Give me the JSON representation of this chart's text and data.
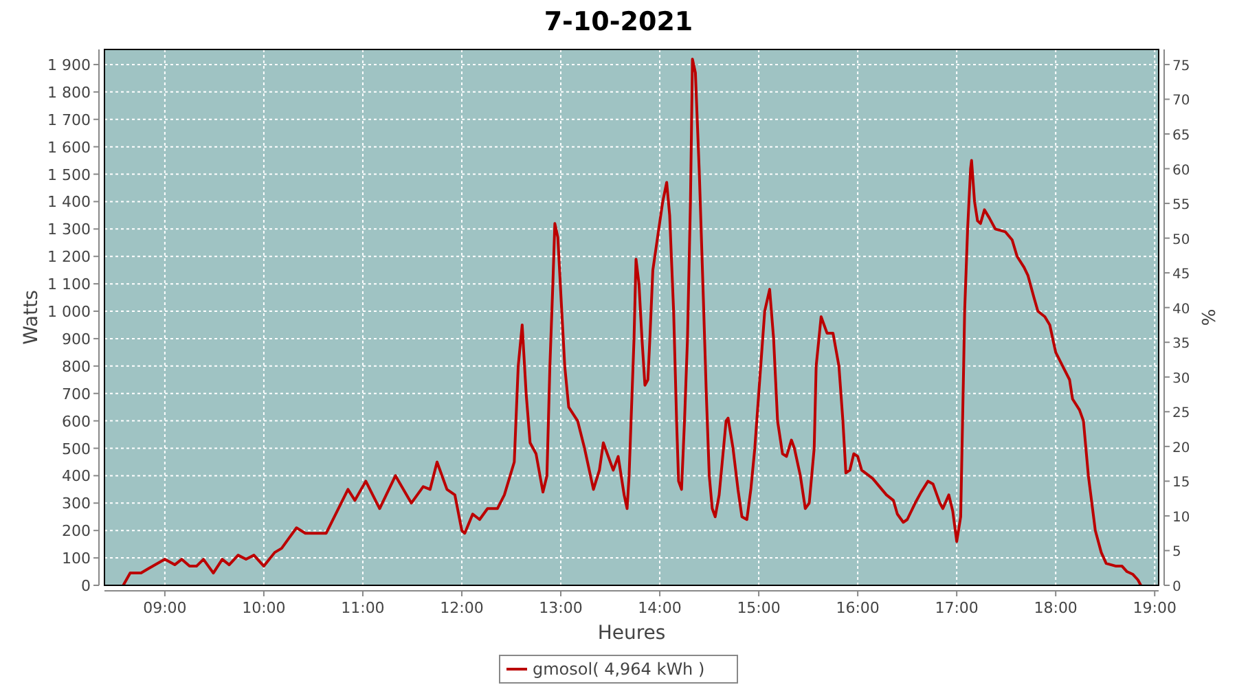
{
  "chart_data": {
    "type": "line",
    "title": "7-10-2021",
    "xlabel": "Heures",
    "ylabel": "Watts",
    "y2label": "%",
    "xlim": [
      8.39,
      19.04
    ],
    "xticks": [
      {
        "value": 9,
        "label": "09:00"
      },
      {
        "value": 10,
        "label": "10:00"
      },
      {
        "value": 11,
        "label": "11:00"
      },
      {
        "value": 12,
        "label": "12:00"
      },
      {
        "value": 13,
        "label": "13:00"
      },
      {
        "value": 14,
        "label": "14:00"
      },
      {
        "value": 15,
        "label": "15:00"
      },
      {
        "value": 16,
        "label": "16:00"
      },
      {
        "value": 17,
        "label": "17:00"
      },
      {
        "value": 18,
        "label": "18:00"
      },
      {
        "value": 19,
        "label": "19:00"
      }
    ],
    "ylim": [
      0,
      1955
    ],
    "yticks": [
      0,
      100,
      200,
      300,
      400,
      500,
      600,
      700,
      800,
      900,
      {
        "value": 1000,
        "label": "1 000"
      },
      {
        "value": 1100,
        "label": "1 100"
      },
      {
        "value": 1200,
        "label": "1 200"
      },
      {
        "value": 1300,
        "label": "1 300"
      },
      {
        "value": 1400,
        "label": "1 400"
      },
      {
        "value": 1500,
        "label": "1 500"
      },
      {
        "value": 1600,
        "label": "1 600"
      },
      {
        "value": 1700,
        "label": "1 700"
      },
      {
        "value": 1800,
        "label": "1 800"
      },
      {
        "value": 1900,
        "label": "1 900"
      }
    ],
    "y2lim": [
      0,
      77.17
    ],
    "y2ticks": [
      0,
      5,
      10,
      15,
      20,
      25,
      30,
      35,
      40,
      45,
      50,
      55,
      60,
      65,
      70,
      75
    ],
    "grid": true,
    "legend": "bottom",
    "marker": "none",
    "line_style": "solid",
    "series": [
      {
        "name": "gmosol( 4,964 kWh )",
        "color": "#bb0000",
        "x": [
          8.58,
          8.65,
          8.76,
          8.83,
          9.0,
          9.1,
          9.17,
          9.25,
          9.32,
          9.39,
          9.49,
          9.58,
          9.65,
          9.74,
          9.82,
          9.9,
          10.0,
          10.11,
          10.18,
          10.25,
          10.33,
          10.42,
          10.63,
          10.85,
          10.92,
          11.03,
          11.17,
          11.33,
          11.49,
          11.61,
          11.68,
          11.75,
          11.85,
          11.93,
          12.0,
          12.03,
          12.11,
          12.18,
          12.26,
          12.36,
          12.43,
          12.53,
          12.57,
          12.61,
          12.65,
          12.69,
          12.75,
          12.82,
          12.86,
          12.89,
          12.92,
          12.94,
          12.97,
          13.01,
          13.04,
          13.08,
          13.17,
          13.24,
          13.33,
          13.39,
          13.43,
          13.49,
          13.53,
          13.58,
          13.64,
          13.67,
          13.69,
          13.74,
          13.76,
          13.79,
          13.82,
          13.85,
          13.88,
          13.9,
          13.93,
          13.99,
          14.03,
          14.07,
          14.1,
          14.14,
          14.17,
          14.19,
          14.22,
          14.25,
          14.28,
          14.31,
          14.32,
          14.33,
          14.36,
          14.4,
          14.44,
          14.47,
          14.5,
          14.53,
          14.56,
          14.6,
          14.67,
          14.69,
          14.74,
          14.79,
          14.83,
          14.88,
          14.92,
          14.96,
          15.0,
          15.06,
          15.11,
          15.15,
          15.19,
          15.24,
          15.28,
          15.33,
          15.36,
          15.42,
          15.47,
          15.51,
          15.56,
          15.58,
          15.63,
          15.69,
          15.75,
          15.81,
          15.85,
          15.88,
          15.92,
          15.96,
          16.0,
          16.04,
          16.15,
          16.22,
          16.29,
          16.36,
          16.4,
          16.46,
          16.5,
          16.58,
          16.64,
          16.71,
          16.76,
          16.83,
          16.86,
          16.92,
          16.96,
          17.0,
          17.04,
          17.07,
          17.08,
          17.11,
          17.14,
          17.15,
          17.18,
          17.21,
          17.24,
          17.28,
          17.33,
          17.39,
          17.49,
          17.56,
          17.61,
          17.68,
          17.72,
          17.78,
          17.82,
          17.89,
          17.94,
          18.0,
          18.07,
          18.14,
          18.17,
          18.24,
          18.28,
          18.33,
          18.4,
          18.46,
          18.51,
          18.61,
          18.67,
          18.72,
          18.78,
          18.83,
          18.86
        ],
        "values": [
          0,
          45,
          45,
          60,
          95,
          75,
          95,
          70,
          70,
          95,
          45,
          95,
          75,
          110,
          95,
          110,
          70,
          120,
          135,
          170,
          210,
          190,
          190,
          350,
          310,
          380,
          280,
          400,
          300,
          360,
          350,
          450,
          350,
          330,
          200,
          190,
          260,
          240,
          280,
          280,
          330,
          450,
          800,
          950,
          700,
          520,
          480,
          340,
          400,
          800,
          1100,
          1320,
          1270,
          1000,
          800,
          650,
          600,
          500,
          350,
          420,
          520,
          460,
          420,
          470,
          330,
          280,
          400,
          900,
          1190,
          1100,
          900,
          730,
          750,
          900,
          1150,
          1300,
          1400,
          1470,
          1350,
          1000,
          600,
          380,
          350,
          600,
          900,
          1400,
          1650,
          1920,
          1870,
          1500,
          1050,
          700,
          400,
          280,
          250,
          330,
          600,
          610,
          500,
          350,
          250,
          240,
          350,
          500,
          700,
          1000,
          1080,
          900,
          600,
          480,
          470,
          530,
          500,
          400,
          280,
          300,
          500,
          800,
          980,
          920,
          920,
          800,
          600,
          410,
          420,
          480,
          470,
          420,
          390,
          360,
          330,
          310,
          260,
          230,
          240,
          300,
          340,
          380,
          370,
          300,
          280,
          330,
          270,
          160,
          250,
          800,
          1000,
          1300,
          1520,
          1550,
          1400,
          1330,
          1320,
          1370,
          1340,
          1300,
          1290,
          1260,
          1200,
          1160,
          1130,
          1050,
          1000,
          980,
          950,
          850,
          800,
          750,
          680,
          640,
          600,
          400,
          200,
          120,
          80,
          70,
          70,
          50,
          40,
          20,
          0
        ]
      }
    ]
  }
}
